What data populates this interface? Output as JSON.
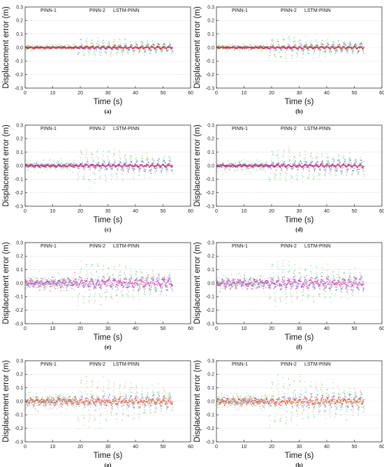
{
  "chart_data": [
    {
      "panel": "(a)",
      "type": "scatter",
      "xlabel": "Time (s)",
      "ylabel": "Displacement error (m)",
      "xlim": [
        0,
        60
      ],
      "ylim": [
        -0.3,
        0.3
      ],
      "xticks": [
        "0",
        "10",
        "20",
        "30",
        "40",
        "50",
        "60"
      ],
      "yticks": [
        "-0.3",
        "-0.2",
        "-0.1",
        "0.0",
        "0.1",
        "0.2",
        "0.3"
      ],
      "grid": true,
      "legend_position": "top",
      "series": [
        {
          "name": "PINN-1",
          "color": "#2233cc",
          "amplitude": [
            0.003,
            0.01,
            0.03
          ],
          "noise": 0.005,
          "period": 2.0
        },
        {
          "name": "PINN-2",
          "color": "#33aa33",
          "amplitude": [
            0.01,
            0.055,
            0.025
          ],
          "noise": 0.012,
          "period": 2.0
        },
        {
          "name": "LSTM-PINN",
          "color": "#dd2222",
          "amplitude": [
            0.003,
            0.005,
            0.006
          ],
          "noise": 0.003,
          "period": 2.0
        }
      ],
      "t_end": 53.5
    },
    {
      "panel": "(b)",
      "type": "scatter",
      "xlabel": "Time (s)",
      "ylabel": "Displacement error (m)",
      "xlim": [
        0,
        60
      ],
      "ylim": [
        -0.3,
        0.3
      ],
      "xticks": [
        "0",
        "10",
        "20",
        "30",
        "40",
        "50",
        "60"
      ],
      "yticks": [
        "-0.3",
        "-0.2",
        "-0.1",
        "0.0",
        "0.1",
        "0.2",
        "0.3"
      ],
      "grid": true,
      "legend_position": "top",
      "series": [
        {
          "name": "PINN-1",
          "color": "#2233cc",
          "amplitude": [
            0.004,
            0.012,
            0.035
          ],
          "noise": 0.006,
          "period": 2.0
        },
        {
          "name": "PINN-2",
          "color": "#33aa33",
          "amplitude": [
            0.012,
            0.07,
            0.025
          ],
          "noise": 0.014,
          "period": 2.0
        },
        {
          "name": "LSTM-PINN",
          "color": "#dd2222",
          "amplitude": [
            0.003,
            0.005,
            0.006
          ],
          "noise": 0.003,
          "period": 2.0
        }
      ],
      "t_end": 53.5
    },
    {
      "panel": "(c)",
      "type": "scatter",
      "xlabel": "Time (s)",
      "ylabel": "Displacement error (m)",
      "xlim": [
        0,
        60
      ],
      "ylim": [
        -0.3,
        0.3
      ],
      "xticks": [
        "0",
        "10",
        "20",
        "30",
        "40",
        "50",
        "60"
      ],
      "yticks": [
        "-0.3",
        "-0.2",
        "-0.1",
        "0.0",
        "0.1",
        "0.2",
        "0.3"
      ],
      "grid": true,
      "legend_position": "top",
      "series": [
        {
          "name": "PINN-1",
          "color": "#2233cc",
          "amplitude": [
            0.005,
            0.02,
            0.04
          ],
          "noise": 0.008,
          "period": 2.0
        },
        {
          "name": "PINN-2",
          "color": "#33aa33",
          "amplitude": [
            0.02,
            0.11,
            0.04
          ],
          "noise": 0.02,
          "period": 2.0
        },
        {
          "name": "LSTM-PINN",
          "color": "#cc2277",
          "amplitude": [
            0.004,
            0.006,
            0.008
          ],
          "noise": 0.004,
          "period": 2.0
        }
      ],
      "t_end": 53.5
    },
    {
      "panel": "(d)",
      "type": "scatter",
      "xlabel": "Time (s)",
      "ylabel": "Displacement error (m)",
      "xlim": [
        0,
        60
      ],
      "ylim": [
        -0.3,
        0.3
      ],
      "xticks": [
        "0",
        "10",
        "20",
        "30",
        "40",
        "50",
        "60"
      ],
      "yticks": [
        "-0.3",
        "-0.2",
        "-0.1",
        "0.0",
        "0.1",
        "0.2",
        "0.3"
      ],
      "grid": true,
      "legend_position": "top",
      "series": [
        {
          "name": "PINN-1",
          "color": "#2233cc",
          "amplitude": [
            0.005,
            0.02,
            0.045
          ],
          "noise": 0.008,
          "period": 2.0
        },
        {
          "name": "PINN-2",
          "color": "#33aa33",
          "amplitude": [
            0.02,
            0.11,
            0.04
          ],
          "noise": 0.02,
          "period": 2.0
        },
        {
          "name": "LSTM-PINN",
          "color": "#cc2277",
          "amplitude": [
            0.004,
            0.006,
            0.008
          ],
          "noise": 0.004,
          "period": 2.0
        }
      ],
      "t_end": 53.5
    },
    {
      "panel": "(e)",
      "type": "scatter",
      "xlabel": "Time (s)",
      "ylabel": "Displacement error (m)",
      "xlim": [
        0,
        60
      ],
      "ylim": [
        -0.3,
        0.3
      ],
      "xticks": [
        "0",
        "10",
        "20",
        "30",
        "40",
        "50",
        "60"
      ],
      "yticks": [
        "-0.3",
        "-0.2",
        "-0.1",
        "0.0",
        "0.1",
        "0.2",
        "0.3"
      ],
      "grid": true,
      "legend_position": "top",
      "series": [
        {
          "name": "PINN-1",
          "color": "#2233cc",
          "amplitude": [
            0.01,
            0.025,
            0.05
          ],
          "noise": 0.012,
          "period": 2.0
        },
        {
          "name": "PINN-2",
          "color": "#33aa33",
          "amplitude": [
            0.025,
            0.14,
            0.05
          ],
          "noise": 0.025,
          "period": 2.0
        },
        {
          "name": "LSTM-PINN",
          "color": "#dd33aa",
          "amplitude": [
            0.02,
            0.02,
            0.02
          ],
          "noise": 0.015,
          "period": 2.0
        }
      ],
      "t_end": 53.5
    },
    {
      "panel": "(f)",
      "type": "scatter",
      "xlabel": "Time (s)",
      "ylabel": "Displacement error (m)",
      "xlim": [
        0,
        60
      ],
      "ylim": [
        -0.3,
        0.3
      ],
      "xticks": [
        "0",
        "10",
        "20",
        "30",
        "40",
        "50",
        "60"
      ],
      "yticks": [
        "-0.3",
        "-0.2",
        "-0.1",
        "0.0",
        "0.1",
        "0.2",
        "0.3"
      ],
      "grid": true,
      "legend_position": "top",
      "series": [
        {
          "name": "PINN-1",
          "color": "#2233cc",
          "amplitude": [
            0.01,
            0.025,
            0.05
          ],
          "noise": 0.012,
          "period": 2.0
        },
        {
          "name": "PINN-2",
          "color": "#33aa33",
          "amplitude": [
            0.025,
            0.14,
            0.05
          ],
          "noise": 0.025,
          "period": 2.0
        },
        {
          "name": "LSTM-PINN",
          "color": "#dd33aa",
          "amplitude": [
            0.02,
            0.02,
            0.02
          ],
          "noise": 0.015,
          "period": 2.0
        }
      ],
      "t_end": 53.5
    },
    {
      "panel": "(g)",
      "type": "scatter",
      "xlabel": "Time (s)",
      "ylabel": "Displacement error (m)",
      "xlim": [
        0,
        60
      ],
      "ylim": [
        -0.3,
        0.3
      ],
      "xticks": [
        "0",
        "10",
        "20",
        "30",
        "40",
        "50",
        "60"
      ],
      "yticks": [
        "-0.3",
        "-0.2",
        "-0.1",
        "0.0",
        "0.1",
        "0.2",
        "0.3"
      ],
      "grid": true,
      "legend_position": "top",
      "series": [
        {
          "name": "PINN-1",
          "color": "#2233cc",
          "amplitude": [
            0.01,
            0.03,
            0.045
          ],
          "noise": 0.012,
          "period": 2.0
        },
        {
          "name": "PINN-2",
          "color": "#33aa33",
          "amplitude": [
            0.03,
            0.15,
            0.05
          ],
          "noise": 0.03,
          "period": 2.0
        },
        {
          "name": "LSTM-PINN",
          "color": "#ee5522",
          "amplitude": [
            0.015,
            0.012,
            0.012
          ],
          "noise": 0.012,
          "period": 2.0
        }
      ],
      "t_end": 53.5
    },
    {
      "panel": "(h)",
      "type": "scatter",
      "xlabel": "Time (s)",
      "ylabel": "Displacement error (m)",
      "xlim": [
        0,
        60
      ],
      "ylim": [
        -0.3,
        0.3
      ],
      "xticks": [
        "0",
        "10",
        "20",
        "30",
        "40",
        "50",
        "60"
      ],
      "yticks": [
        "-0.3",
        "-0.2",
        "-0.1",
        "0.0",
        "0.1",
        "0.2",
        "0.3"
      ],
      "grid": true,
      "legend_position": "top",
      "series": [
        {
          "name": "PINN-1",
          "color": "#2233cc",
          "amplitude": [
            0.01,
            0.03,
            0.05
          ],
          "noise": 0.012,
          "period": 2.0
        },
        {
          "name": "PINN-2",
          "color": "#33aa33",
          "amplitude": [
            0.03,
            0.16,
            0.05
          ],
          "noise": 0.03,
          "period": 2.0
        },
        {
          "name": "LSTM-PINN",
          "color": "#ee5522",
          "amplitude": [
            0.015,
            0.012,
            0.012
          ],
          "noise": 0.012,
          "period": 2.0
        }
      ],
      "t_end": 53.5
    }
  ]
}
